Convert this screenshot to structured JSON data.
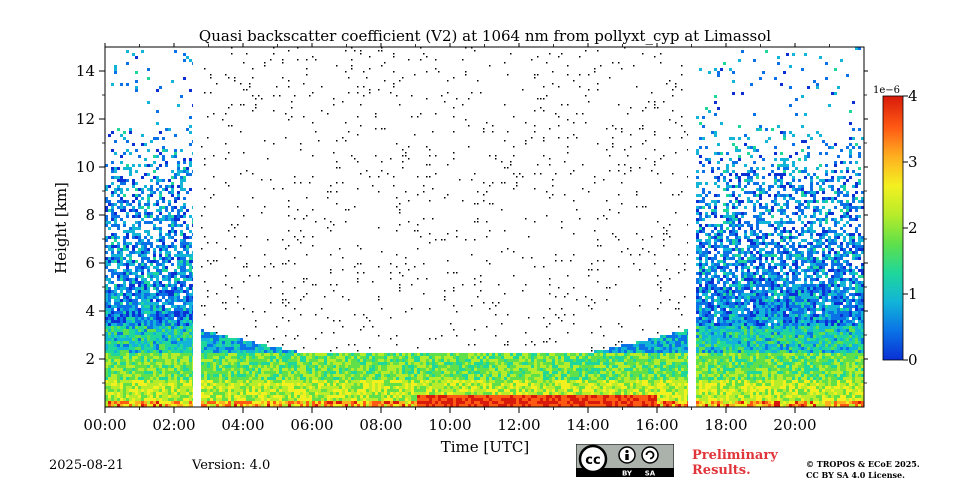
{
  "chart_data": {
    "type": "heatmap",
    "title": "Quasi backscatter coefficient (V2) at 1064 nm from pollyxt_cyp at Limassol",
    "xlabel": "Time [UTC]",
    "ylabel": "Height [km]",
    "xlim_hours": [
      0,
      22
    ],
    "ylim_km": [
      0,
      15
    ],
    "x_ticks_hours": [
      0,
      2,
      4,
      6,
      8,
      10,
      12,
      14,
      16,
      18,
      20
    ],
    "x_tick_labels": [
      "00:00",
      "02:00",
      "04:00",
      "06:00",
      "08:00",
      "10:00",
      "12:00",
      "14:00",
      "16:00",
      "18:00",
      "20:00"
    ],
    "y_ticks_km": [
      2,
      4,
      6,
      8,
      10,
      12,
      14
    ],
    "y_tick_labels": [
      "2",
      "4",
      "6",
      "8",
      "10",
      "12",
      "14"
    ],
    "colorbar": {
      "min": 0,
      "max": 4,
      "ticks": [
        0,
        1,
        2,
        3,
        4
      ],
      "tick_labels": [
        "0",
        "1",
        "2",
        "3",
        "4"
      ],
      "exponent_label": "1e−6",
      "colormap": [
        "#0a2fd4",
        "#0a72e6",
        "#12b4d8",
        "#1fd79a",
        "#5fe04a",
        "#b7ec2a",
        "#f3f020",
        "#ffb020",
        "#ff5a14",
        "#d81a0a"
      ]
    },
    "data_gaps_hours": [
      [
        2.55,
        2.72
      ],
      [
        16.9,
        17.05
      ]
    ],
    "layers": [
      {
        "name": "noisy signal (night)",
        "time_ranges": [
          [
            0,
            2.55
          ],
          [
            17.05,
            22
          ]
        ],
        "top_km": 15,
        "value": 0.8
      },
      {
        "name": "elevated aerosol layer top",
        "time_ranges": [
          [
            0,
            2.55
          ],
          [
            17.05,
            22
          ]
        ],
        "top_km": 3.4,
        "value": 1.1
      },
      {
        "name": "aerosol layer",
        "time_ranges": [
          [
            0,
            22
          ]
        ],
        "base_km": 0.5,
        "top_km": 2.3,
        "value": 1.6
      },
      {
        "name": "near-surface layer",
        "time_ranges": [
          [
            9,
            16
          ]
        ],
        "base_km": 0.0,
        "top_km": 0.6,
        "value": 3.6
      }
    ]
  },
  "footer": {
    "date": "2025-08-21",
    "version": "Version: 4.0",
    "preliminary_line1": "Preliminary",
    "preliminary_line2": "Results.",
    "copyright_line1": "© TROPOS & ECoE 2025.",
    "copyright_line2": "CC BY SA 4.0 License.",
    "license_badge": {
      "cc": "cc",
      "by": "BY",
      "sa": "SA"
    }
  }
}
